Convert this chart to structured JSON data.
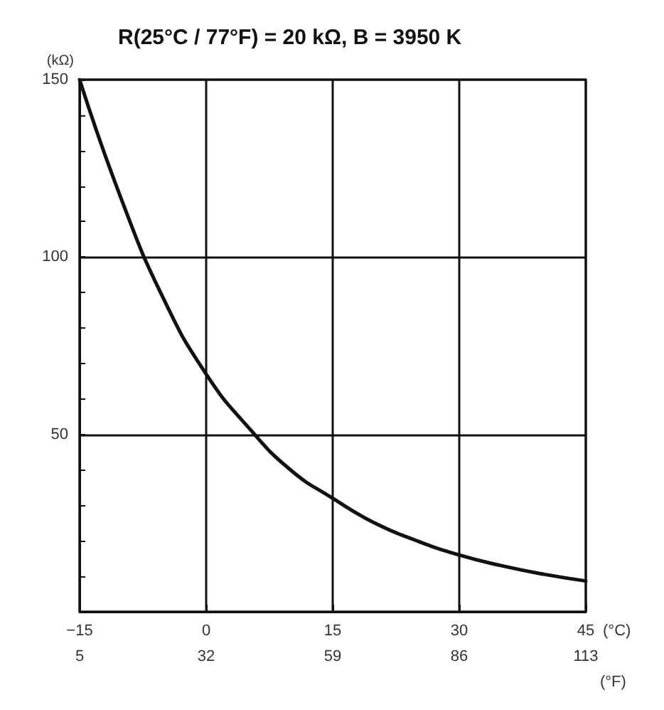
{
  "chart_data": {
    "type": "line",
    "title": "R(25°C / 77°F) = 20 kΩ, B = 3950 K",
    "ylabel": "(kΩ)",
    "xlabel": "(°C)",
    "x2label": "(°F)",
    "x": [
      -15,
      -10,
      -5,
      0,
      5,
      10,
      15,
      20,
      25,
      30,
      35,
      40,
      45
    ],
    "series": [
      {
        "color": "#111111",
        "values": [
          150,
          116,
          88,
          67,
          52,
          40,
          32,
          25,
          20,
          16,
          13,
          10.6,
          8.7
        ]
      }
    ],
    "xlim": [
      -15,
      45
    ],
    "xticks": [
      -15,
      0,
      15,
      30,
      45
    ],
    "x2lim": [
      5,
      113
    ],
    "x2ticks": [
      5,
      32,
      59,
      86,
      113
    ],
    "ylim": [
      0,
      150
    ],
    "yticks": [
      {
        "value": 0,
        "label": null
      },
      {
        "value": 10,
        "label": null
      },
      {
        "value": 20,
        "label": null
      },
      {
        "value": 30,
        "label": null
      },
      {
        "value": 40,
        "label": null
      },
      50,
      {
        "value": 60,
        "label": null
      },
      {
        "value": 70,
        "label": null
      },
      {
        "value": 80,
        "label": null
      },
      {
        "value": 90,
        "label": null
      },
      100,
      {
        "value": 110,
        "label": null
      },
      {
        "value": 120,
        "label": null
      },
      {
        "value": 130,
        "label": null
      },
      {
        "value": 140,
        "label": null
      },
      150
    ],
    "grid": true,
    "marker": "none",
    "line_style": "solid"
  }
}
